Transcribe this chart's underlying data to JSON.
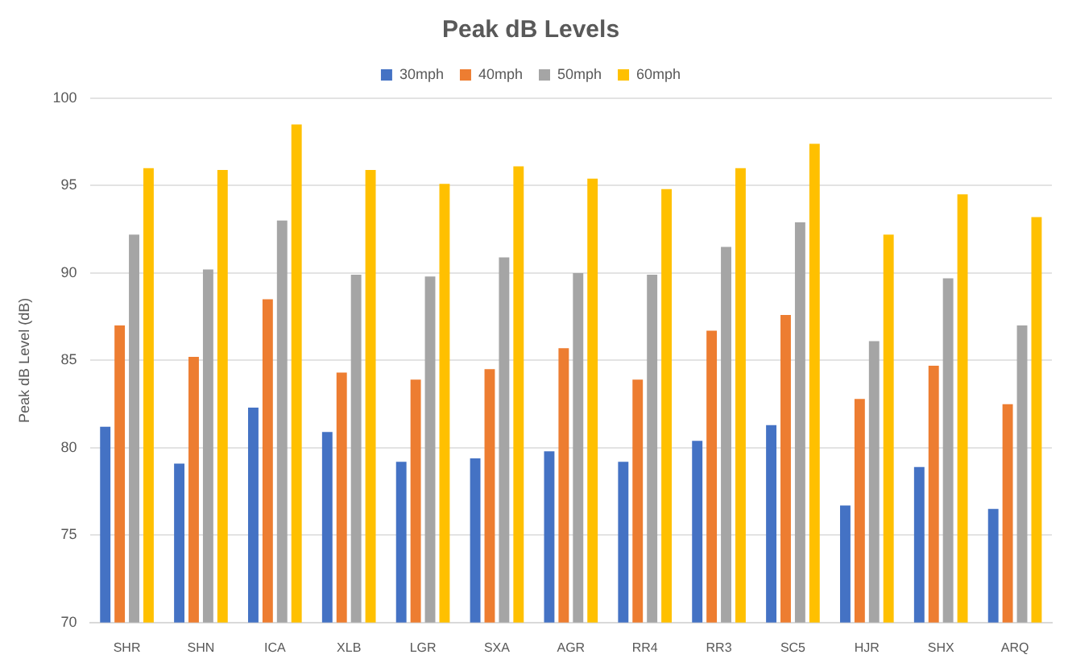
{
  "chart_data": {
    "type": "bar",
    "title": "Peak dB Levels",
    "ylabel": "Peak dB Level (dB)",
    "categories": [
      "SHR",
      "SHN",
      "ICA",
      "XLB",
      "LGR",
      "SXA",
      "AGR",
      "RR4",
      "RR3",
      "SC5",
      "HJR",
      "SHX",
      "ARQ"
    ],
    "series": [
      {
        "name": "30mph",
        "color": "#4472c4",
        "values": [
          81.2,
          79.1,
          82.3,
          80.9,
          79.2,
          79.4,
          79.8,
          79.2,
          80.4,
          81.3,
          76.7,
          78.9,
          76.5
        ]
      },
      {
        "name": "40mph",
        "color": "#ed7d31",
        "values": [
          87.0,
          85.2,
          88.5,
          84.3,
          83.9,
          84.5,
          85.7,
          83.9,
          86.7,
          87.6,
          82.8,
          84.7,
          82.5
        ]
      },
      {
        "name": "50mph",
        "color": "#a5a5a5",
        "values": [
          92.2,
          90.2,
          93.0,
          89.9,
          89.8,
          90.9,
          90.0,
          89.9,
          91.5,
          92.9,
          86.1,
          89.7,
          87.0
        ]
      },
      {
        "name": "60mph",
        "color": "#ffc000",
        "values": [
          96.0,
          95.9,
          98.5,
          95.9,
          95.1,
          96.1,
          95.4,
          94.8,
          96.0,
          97.4,
          92.2,
          94.5,
          93.2
        ]
      }
    ],
    "ylim": [
      70,
      100
    ],
    "yticks": [
      70,
      75,
      80,
      85,
      90,
      95,
      100
    ],
    "grid": "y",
    "legend": "top"
  }
}
